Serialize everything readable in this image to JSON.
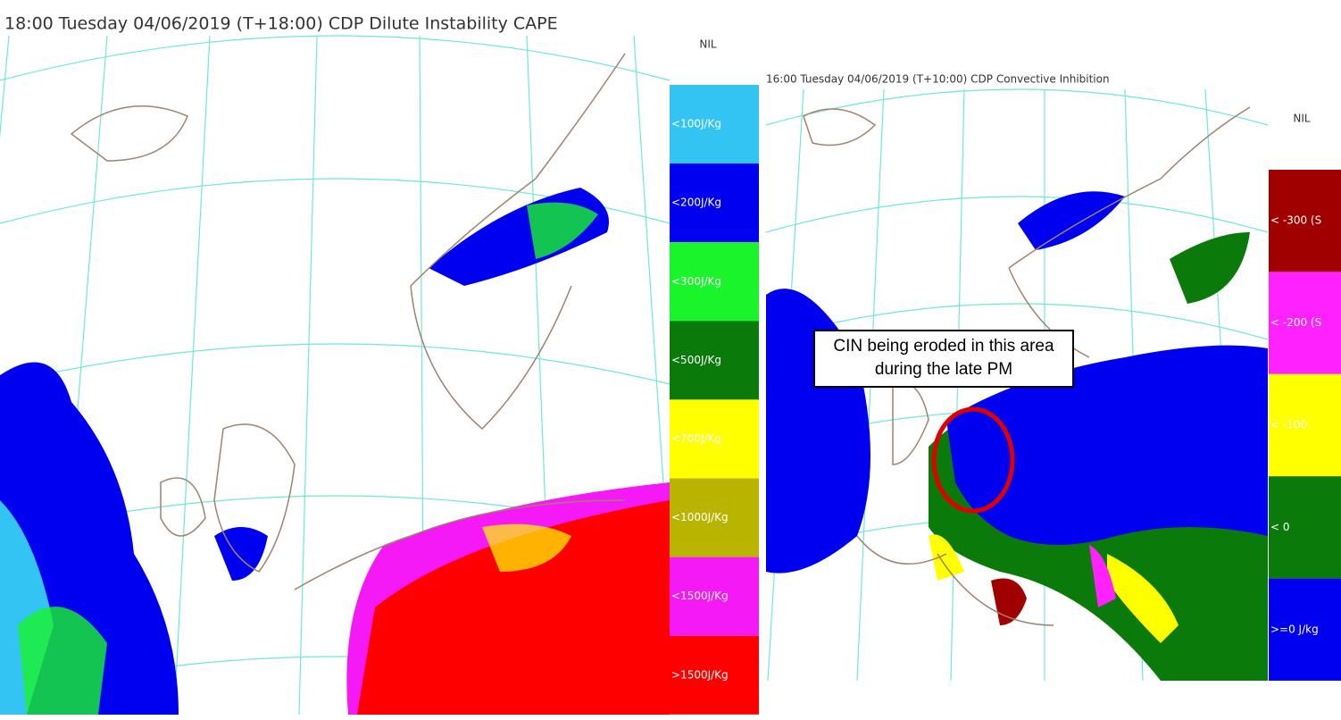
{
  "left_panel": {
    "title": "18:00 Tuesday 04/06/2019 (T+18:00) CDP Dilute Instability CAPE",
    "legend": {
      "nil": "NIL",
      "items": [
        {
          "label": "<100J/Kg",
          "color": "#33c4f4"
        },
        {
          "label": "<200J/Kg",
          "color": "#0000f0"
        },
        {
          "label": "<300J/Kg",
          "color": "#19f52a"
        },
        {
          "label": "<500J/Kg",
          "color": "#0a7a0a"
        },
        {
          "label": "<700J/Kg",
          "color": "#ffff00"
        },
        {
          "label": "<1000J/Kg",
          "color": "#b8b400"
        },
        {
          "label": "<1500J/Kg",
          "color": "#f51af5"
        },
        {
          "label": ">1500J/Kg",
          "color": "#ff0000"
        }
      ]
    }
  },
  "right_panel": {
    "title": "16:00 Tuesday 04/06/2019 (T+10:00) CDP Convective Inhibition",
    "legend": {
      "nil": "NIL",
      "items": [
        {
          "label": "< -300 (S",
          "color": "#a00000"
        },
        {
          "label": "< -200 (S",
          "color": "#ff22ff"
        },
        {
          "label": "< -100",
          "color": "#ffff00"
        },
        {
          "label": "<   0",
          "color": "#0a7a0a"
        },
        {
          "label": ">=0 J/kg",
          "color": "#0000f0"
        }
      ]
    },
    "annotation": "CIN being eroded in this area during the late PM"
  }
}
